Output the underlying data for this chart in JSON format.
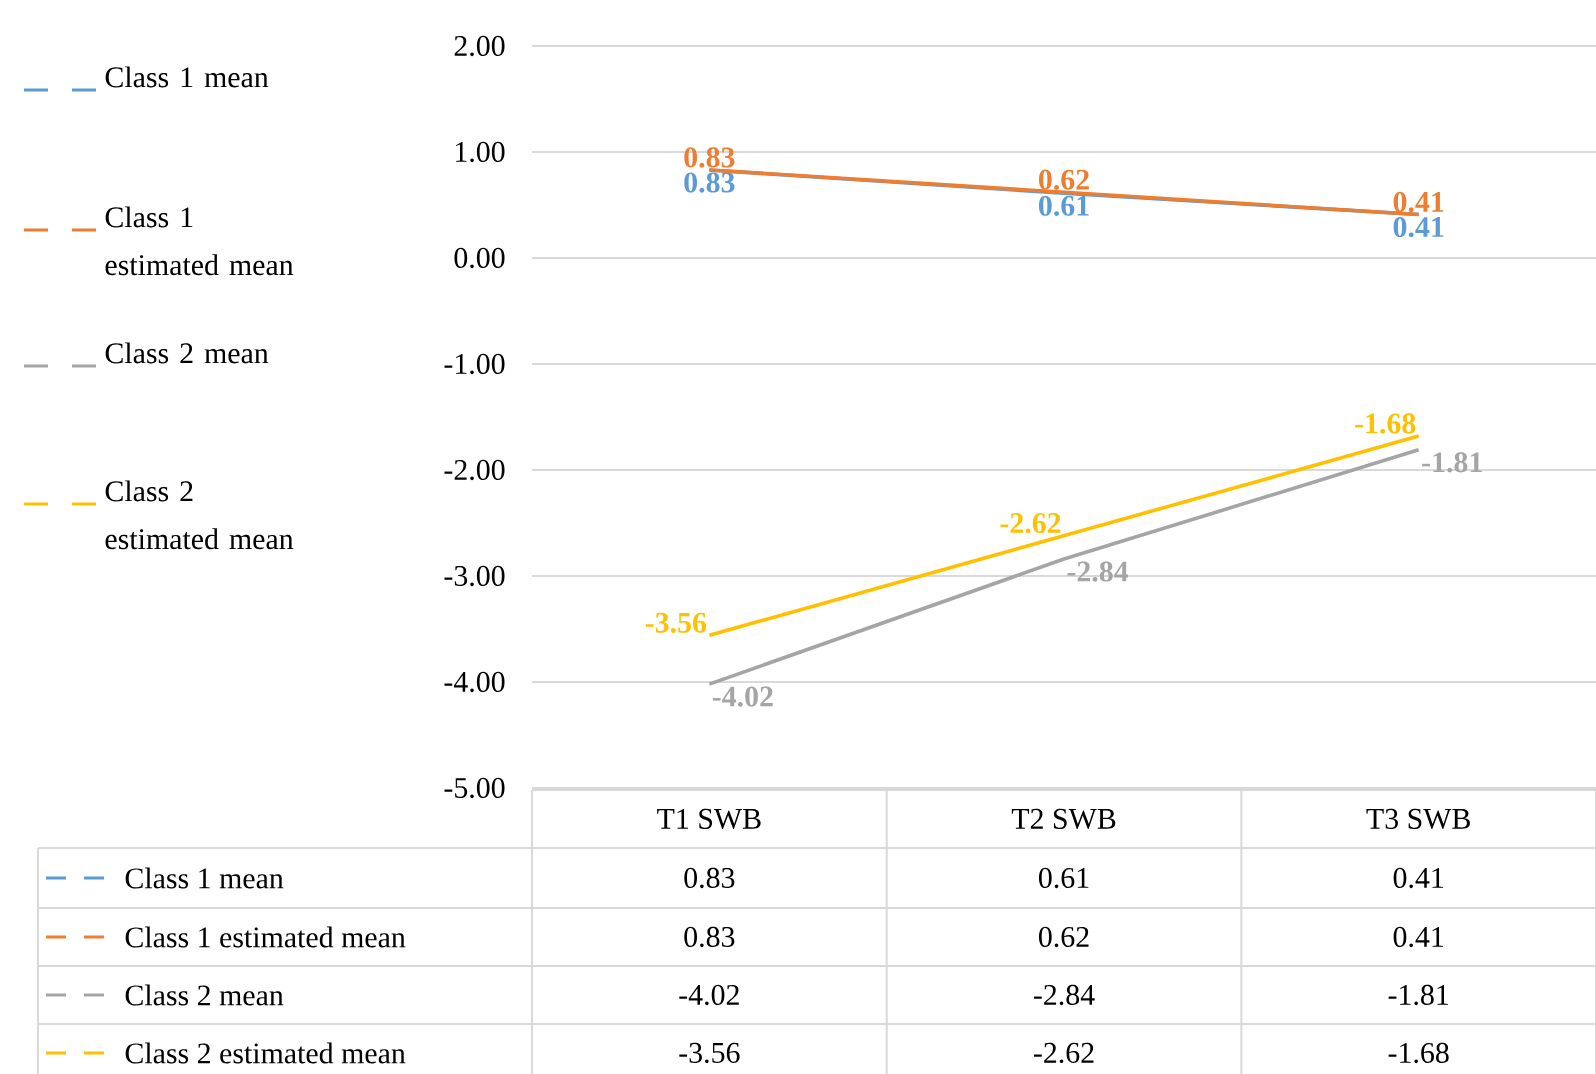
{
  "chart_data": {
    "type": "line",
    "categories": [
      "T1 SWB",
      "T2 SWB",
      "T3 SWB"
    ],
    "series": [
      {
        "name": "Class 1 mean",
        "color": "#5b9bd5",
        "values": [
          0.83,
          0.61,
          0.41
        ],
        "value_labels": [
          "0.83",
          "0.61",
          "0.41"
        ]
      },
      {
        "name": "Class 1 estimated mean",
        "color": "#ed7d31",
        "values": [
          0.83,
          0.62,
          0.41
        ],
        "value_labels": [
          "0.83",
          "0.62",
          "0.41"
        ]
      },
      {
        "name": "Class 2 mean",
        "color": "#a5a5a5",
        "values": [
          -4.02,
          -2.84,
          -1.81
        ],
        "value_labels": [
          "-4.02",
          "-2.84",
          "-1.81"
        ]
      },
      {
        "name": "Class 2 estimated mean",
        "color": "#ffc000",
        "values": [
          -3.56,
          -2.62,
          -1.68
        ],
        "value_labels": [
          "-3.56",
          "-2.62",
          "-1.68"
        ]
      }
    ],
    "ylim": [
      -5,
      2
    ],
    "yticks": [
      {
        "value": -5,
        "label": "-5.00"
      },
      {
        "value": -4,
        "label": "-4.00"
      },
      {
        "value": -3,
        "label": "-3.00"
      },
      {
        "value": -2,
        "label": "-2.00"
      },
      {
        "value": -1,
        "label": "-1.00"
      },
      {
        "value": 0,
        "label": "0.00"
      },
      {
        "value": 1,
        "label": "1.00"
      },
      {
        "value": 2,
        "label": "2.00"
      }
    ],
    "grid": "y",
    "legend": "left"
  }
}
